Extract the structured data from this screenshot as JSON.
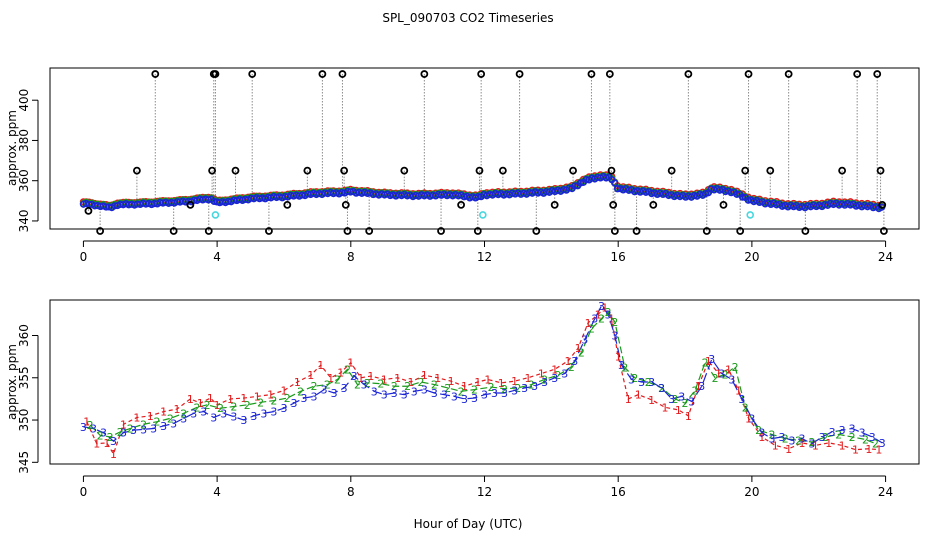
{
  "title": "SPL_090703  CO2 Timeseries",
  "xlabel": "Hour of Day (UTC)",
  "colors": {
    "fg": "#000000",
    "red": "#e31a1c",
    "green": "#1a9b1a",
    "blue": "#1a24d6",
    "cyan": "#46d7df",
    "gray": "#8c8c8c"
  },
  "chart_data": [
    {
      "type": "scatter",
      "name": "top-panel",
      "ylabel": "approx. ppm",
      "xlim": [
        -1.0,
        25.0
      ],
      "ylim": [
        336,
        416
      ],
      "xticks": [
        0,
        4,
        8,
        12,
        16,
        20,
        24
      ],
      "yticks": [
        340,
        360,
        380,
        400
      ],
      "baseline_profile": {
        "x": [
          0,
          0.5,
          0.8,
          1.0,
          2,
          3,
          3.8,
          4.0,
          5,
          6,
          7,
          7.8,
          8.0,
          9,
          10,
          11,
          11.8,
          12.0,
          13,
          14,
          14.6,
          15.0,
          15.5,
          15.8,
          16.0,
          17,
          18,
          18.6,
          18.8,
          19.4,
          20.0,
          21.0,
          21.5,
          22.0,
          22.5,
          23.0,
          23.9
        ],
        "y": [
          348.5,
          347.5,
          346.5,
          348,
          348.5,
          349.5,
          351,
          349,
          351,
          352,
          353.5,
          354,
          354.5,
          353,
          352.5,
          353,
          351.5,
          353,
          353.5,
          354.5,
          356,
          360,
          362,
          361,
          356,
          354,
          352,
          353,
          356,
          354.5,
          350,
          347.5,
          347,
          347.5,
          348.5,
          348,
          346.5
        ]
      },
      "series": [
        {
          "name": "series-1",
          "color": "red",
          "offset": 1.0,
          "marker": "circle"
        },
        {
          "name": "series-2",
          "color": "green",
          "offset": 0.5,
          "marker": "circle"
        },
        {
          "name": "series-3",
          "color": "blue",
          "offset": 0.0,
          "marker": "circle"
        }
      ],
      "flagged_points": [
        [
          0.15,
          345
        ],
        [
          0.5,
          335
        ],
        [
          1.6,
          365
        ],
        [
          2.15,
          413
        ],
        [
          2.7,
          335
        ],
        [
          3.2,
          348
        ],
        [
          3.75,
          335
        ],
        [
          3.85,
          365
        ],
        [
          3.9,
          413
        ],
        [
          3.95,
          413
        ],
        [
          4.55,
          365
        ],
        [
          5.05,
          413
        ],
        [
          5.55,
          335
        ],
        [
          6.1,
          348
        ],
        [
          6.7,
          365
        ],
        [
          7.15,
          413
        ],
        [
          7.75,
          413
        ],
        [
          7.8,
          365
        ],
        [
          7.85,
          348
        ],
        [
          7.9,
          335
        ],
        [
          8.55,
          335
        ],
        [
          9.6,
          365
        ],
        [
          10.2,
          413
        ],
        [
          10.7,
          335
        ],
        [
          11.3,
          348
        ],
        [
          11.8,
          335
        ],
        [
          11.85,
          365
        ],
        [
          11.9,
          413
        ],
        [
          12.55,
          365
        ],
        [
          13.05,
          413
        ],
        [
          13.55,
          335
        ],
        [
          14.1,
          348
        ],
        [
          14.65,
          365
        ],
        [
          15.2,
          413
        ],
        [
          15.75,
          413
        ],
        [
          15.8,
          365
        ],
        [
          15.85,
          348
        ],
        [
          15.9,
          335
        ],
        [
          16.55,
          335
        ],
        [
          17.05,
          348
        ],
        [
          17.6,
          365
        ],
        [
          18.1,
          413
        ],
        [
          18.65,
          335
        ],
        [
          19.15,
          348
        ],
        [
          19.65,
          335
        ],
        [
          19.8,
          365
        ],
        [
          19.9,
          413
        ],
        [
          20.55,
          365
        ],
        [
          21.1,
          413
        ],
        [
          21.6,
          335
        ],
        [
          22.7,
          365
        ],
        [
          23.15,
          413
        ],
        [
          23.75,
          413
        ],
        [
          23.85,
          365
        ],
        [
          23.9,
          348
        ],
        [
          23.95,
          335
        ]
      ],
      "cyan_points": [
        [
          3.95,
          343
        ],
        [
          11.95,
          343
        ],
        [
          19.95,
          343
        ]
      ]
    },
    {
      "type": "line",
      "name": "bottom-panel",
      "ylabel": "approx. ppm",
      "xlim": [
        -1.0,
        25.0
      ],
      "ylim": [
        344.8,
        364.2
      ],
      "xticks": [
        0,
        4,
        8,
        12,
        16,
        20,
        24
      ],
      "yticks": [
        345,
        350,
        355,
        360
      ],
      "markers": [
        "1",
        "2",
        "3"
      ],
      "series": [
        {
          "name": "series-1",
          "label": "1",
          "color": "red",
          "offset": 0.8,
          "dash": "4,3",
          "x": [
            0.1,
            0.4,
            0.7,
            0.9,
            1.2,
            1.6,
            2.0,
            2.4,
            2.8,
            3.2,
            3.5,
            3.8,
            4.0,
            4.4,
            4.8,
            5.2,
            5.6,
            6.0,
            6.4,
            6.8,
            7.1,
            7.4,
            7.7,
            8.0,
            8.3,
            8.6,
            9.0,
            9.4,
            9.8,
            10.2,
            10.6,
            11.0,
            11.4,
            11.8,
            12.1,
            12.5,
            12.9,
            13.3,
            13.7,
            14.1,
            14.5,
            14.8,
            15.1,
            15.4,
            15.6,
            15.8,
            16.0,
            16.3,
            16.6,
            17.0,
            17.4,
            17.8,
            18.1,
            18.4,
            18.7,
            19.0,
            19.3,
            19.6,
            19.9,
            20.3,
            20.7,
            21.1,
            21.5,
            21.9,
            22.3,
            22.7,
            23.1,
            23.5,
            23.8
          ],
          "y": [
            349.8,
            347.2,
            347.3,
            346.0,
            349.5,
            350.3,
            350.5,
            351.0,
            351.3,
            352.5,
            352.0,
            352.6,
            351.8,
            352.5,
            352.6,
            352.8,
            353.0,
            353.5,
            354.5,
            355.3,
            356.5,
            355.0,
            355.6,
            356.8,
            355.0,
            355.2,
            354.8,
            355.0,
            354.5,
            355.3,
            355.0,
            354.6,
            354.0,
            354.5,
            354.8,
            354.4,
            354.6,
            355.0,
            355.5,
            356.0,
            357.0,
            358.5,
            361.5,
            362.5,
            363.3,
            362.0,
            357.5,
            352.5,
            353.0,
            352.4,
            351.5,
            351.2,
            350.5,
            354.0,
            357.0,
            355.5,
            356.0,
            353.5,
            350.2,
            348.0,
            347.0,
            346.6,
            347.3,
            347.0,
            347.3,
            347.0,
            346.5,
            346.6,
            346.5
          ]
        },
        {
          "name": "series-2",
          "label": "2",
          "color": "green",
          "offset": 0.4,
          "dash": "7,3",
          "x": [
            0.2,
            0.5,
            0.8,
            1.1,
            1.4,
            1.8,
            2.2,
            2.6,
            3.0,
            3.4,
            3.7,
            4.1,
            4.5,
            4.9,
            5.3,
            5.7,
            6.1,
            6.5,
            6.9,
            7.3,
            7.6,
            7.9,
            8.2,
            8.5,
            8.9,
            9.3,
            9.7,
            10.1,
            10.5,
            10.9,
            11.3,
            11.7,
            12.2,
            12.6,
            13.0,
            13.4,
            13.8,
            14.2,
            14.6,
            14.9,
            15.2,
            15.5,
            15.7,
            15.9,
            16.2,
            16.5,
            16.9,
            17.3,
            17.7,
            18.0,
            18.3,
            18.6,
            18.9,
            19.2,
            19.5,
            19.8,
            20.2,
            20.6,
            21.0,
            21.4,
            21.8,
            22.2,
            22.6,
            23.0,
            23.4,
            23.7
          ],
          "y": [
            349.4,
            348.2,
            348.0,
            348.6,
            349.0,
            349.5,
            349.8,
            350.2,
            350.8,
            351.5,
            351.8,
            351.4,
            351.6,
            351.8,
            352.1,
            352.3,
            352.6,
            353.4,
            354.0,
            354.2,
            354.8,
            356.0,
            354.2,
            354.4,
            354.3,
            354.0,
            354.0,
            354.5,
            354.2,
            353.8,
            353.4,
            353.6,
            353.9,
            353.7,
            353.8,
            354.2,
            354.8,
            355.3,
            356.3,
            358.0,
            360.8,
            362.0,
            362.8,
            361.6,
            356.2,
            355.0,
            354.5,
            353.8,
            352.5,
            352.0,
            353.5,
            356.8,
            355.0,
            355.4,
            356.3,
            351.5,
            348.8,
            348.3,
            347.8,
            347.6,
            347.4,
            348.0,
            348.3,
            348.0,
            347.7,
            347.2
          ]
        },
        {
          "name": "series-3",
          "label": "3",
          "color": "blue",
          "offset": 0.0,
          "dash": "10,4",
          "x": [
            0.0,
            0.3,
            0.6,
            0.9,
            1.2,
            1.5,
            1.8,
            2.1,
            2.4,
            2.7,
            3.0,
            3.3,
            3.6,
            3.9,
            4.2,
            4.5,
            4.8,
            5.1,
            5.4,
            5.7,
            6.0,
            6.3,
            6.6,
            6.9,
            7.2,
            7.5,
            7.8,
            8.1,
            8.4,
            8.7,
            9.0,
            9.3,
            9.6,
            9.9,
            10.2,
            10.5,
            10.8,
            11.1,
            11.4,
            11.7,
            12.0,
            12.3,
            12.6,
            12.9,
            13.2,
            13.5,
            13.8,
            14.1,
            14.4,
            14.7,
            15.0,
            15.3,
            15.5,
            15.7,
            15.9,
            16.1,
            16.4,
            16.7,
            17.0,
            17.3,
            17.6,
            17.9,
            18.2,
            18.5,
            18.8,
            19.1,
            19.4,
            19.7,
            20.0,
            20.3,
            20.6,
            20.9,
            21.2,
            21.5,
            21.8,
            22.1,
            22.4,
            22.7,
            23.0,
            23.3,
            23.6,
            23.9
          ],
          "y": [
            349.2,
            349.0,
            348.5,
            347.5,
            348.5,
            348.8,
            348.9,
            349.0,
            349.3,
            349.6,
            350.2,
            350.8,
            351.0,
            350.3,
            350.8,
            350.4,
            350.0,
            350.5,
            350.8,
            351.0,
            351.4,
            352.0,
            352.6,
            352.8,
            353.6,
            353.2,
            353.8,
            355.2,
            354.2,
            353.4,
            353.0,
            353.2,
            353.0,
            353.4,
            353.6,
            353.2,
            353.0,
            352.8,
            352.5,
            352.6,
            353.0,
            353.2,
            353.2,
            353.5,
            353.8,
            354.0,
            354.5,
            355.0,
            355.5,
            357.0,
            359.5,
            362.0,
            363.5,
            362.5,
            360.0,
            356.5,
            354.8,
            354.5,
            354.5,
            353.8,
            352.5,
            352.8,
            352.2,
            354.0,
            357.2,
            355.5,
            354.8,
            352.5,
            350.2,
            348.5,
            347.8,
            348.0,
            347.6,
            347.8,
            347.2,
            348.0,
            348.6,
            348.8,
            349.0,
            348.5,
            348.0,
            347.3
          ]
        }
      ]
    }
  ]
}
